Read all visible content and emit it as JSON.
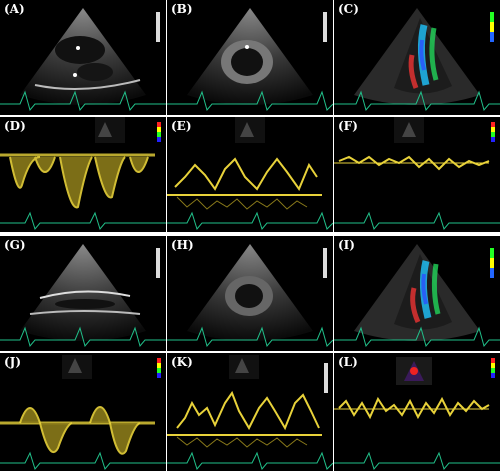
{
  "figure": {
    "panels": [
      {
        "id": "A",
        "label": "(A)",
        "kind": "bmode-parasternal"
      },
      {
        "id": "B",
        "label": "(B)",
        "kind": "bmode-short-axis"
      },
      {
        "id": "C",
        "label": "(C)",
        "kind": "color-doppler"
      },
      {
        "id": "D",
        "label": "(D)",
        "kind": "spectral-doppler"
      },
      {
        "id": "E",
        "label": "(E)",
        "kind": "spectral-doppler"
      },
      {
        "id": "F",
        "label": "(F)",
        "kind": "tissue-doppler"
      },
      {
        "id": "G",
        "label": "(G)",
        "kind": "bmode-parasternal"
      },
      {
        "id": "H",
        "label": "(H)",
        "kind": "bmode-short-axis"
      },
      {
        "id": "I",
        "label": "(I)",
        "kind": "color-doppler"
      },
      {
        "id": "J",
        "label": "(J)",
        "kind": "spectral-doppler"
      },
      {
        "id": "K",
        "label": "(K)",
        "kind": "spectral-doppler"
      },
      {
        "id": "L",
        "label": "(L)",
        "kind": "tissue-doppler"
      }
    ]
  },
  "colors": {
    "background": "#000000",
    "ecg": "#21c08a",
    "doppler_spectrum": "#e8d23a",
    "label_text": "#ffffff",
    "divider": "#ffffff"
  }
}
